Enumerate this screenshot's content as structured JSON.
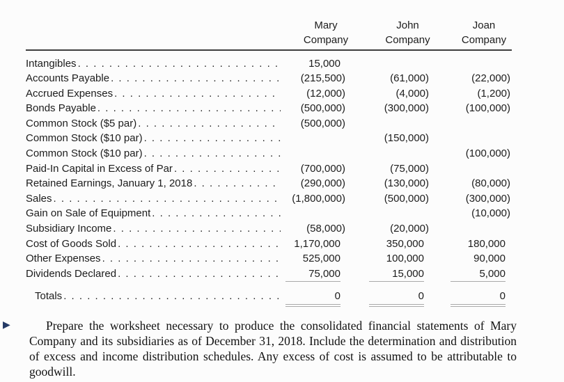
{
  "table": {
    "columns": [
      {
        "line1": "Mary",
        "line2": "Company"
      },
      {
        "line1": "John",
        "line2": "Company"
      },
      {
        "line1": "Joan",
        "line2": "Company"
      }
    ],
    "rows": [
      {
        "label": "Intangibles",
        "mary": "15,000",
        "john": "",
        "joan": ""
      },
      {
        "label": "Accounts Payable",
        "mary": "(215,500)",
        "john": "(61,000)",
        "joan": "(22,000)"
      },
      {
        "label": "Accrued Expenses",
        "mary": "(12,000)",
        "john": "(4,000)",
        "joan": "(1,200)"
      },
      {
        "label": "Bonds Payable",
        "mary": "(500,000)",
        "john": "(300,000)",
        "joan": "(100,000)"
      },
      {
        "label": "Common Stock ($5 par)",
        "mary": "(500,000)",
        "john": "",
        "joan": ""
      },
      {
        "label": "Common Stock ($10 par)",
        "mary": "",
        "john": "(150,000)",
        "joan": ""
      },
      {
        "label": "Common Stock ($10 par)",
        "mary": "",
        "john": "",
        "joan": "(100,000)"
      },
      {
        "label": "Paid-In Capital in Excess of Par",
        "mary": "(700,000)",
        "john": "(75,000)",
        "joan": ""
      },
      {
        "label": "Retained Earnings, January 1, 2018",
        "mary": "(290,000)",
        "john": "(130,000)",
        "joan": "(80,000)"
      },
      {
        "label": "Sales",
        "mary": "(1,800,000)",
        "john": "(500,000)",
        "joan": "(300,000)"
      },
      {
        "label": "Gain on Sale of Equipment",
        "mary": "",
        "john": "",
        "joan": "(10,000)"
      },
      {
        "label": "Subsidiary Income",
        "mary": "(58,000)",
        "john": "(20,000)",
        "joan": ""
      },
      {
        "label": "Cost of Goods Sold",
        "mary": "1,170,000",
        "john": "350,000",
        "joan": "180,000"
      },
      {
        "label": "Other Expenses",
        "mary": "525,000",
        "john": "100,000",
        "joan": "90,000"
      },
      {
        "label": "Dividends Declared",
        "mary": "75,000",
        "john": "15,000",
        "joan": "5,000",
        "underline": "single"
      },
      {
        "label": "Totals",
        "mary": "0",
        "john": "0",
        "joan": "0",
        "underline": "double",
        "indent": true,
        "gap": true
      }
    ]
  },
  "icons": {
    "problem_marker": "▶"
  },
  "problem": {
    "text": "Prepare the worksheet necessary to produce the consolidated financial statements of Mary Company and its subsidiaries as of December 31, 2018. Include the determination and distribution of excess and income distribution schedules. Any excess of cost is assumed to be attributable to goodwill."
  },
  "colors": {
    "marker": "#243A66",
    "header_rule": "#3d3d3d",
    "value_underline": "#a9a9a9",
    "text": "#1c1c1c"
  }
}
